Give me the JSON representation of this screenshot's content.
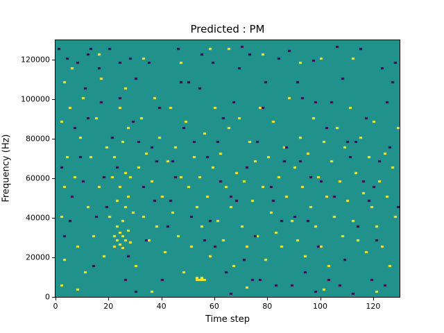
{
  "chart_data": {
    "type": "heatmap",
    "title": "Predicted : PM",
    "xlabel": "Time step",
    "ylabel": "Frequency (Hz)",
    "xlim": [
      0,
      130
    ],
    "ylim": [
      0,
      130000
    ],
    "x_ticks": [
      0,
      20,
      40,
      60,
      80,
      100,
      120
    ],
    "y_ticks": [
      0,
      20000,
      40000,
      60000,
      80000,
      100000,
      120000
    ],
    "grid": false,
    "legend": "none",
    "colormap": "viridis",
    "colors": {
      "background": "#21918c",
      "high": "#fde725",
      "low": "#440154",
      "frame": "#000000"
    },
    "grid_size": {
      "cols": 130,
      "rows": 130
    },
    "high_cells": [
      [
        2,
        5
      ],
      [
        3,
        18
      ],
      [
        2,
        40
      ],
      [
        3,
        55
      ],
      [
        4,
        70
      ],
      [
        2,
        88
      ],
      [
        5,
        95
      ],
      [
        3,
        108
      ],
      [
        6,
        115
      ],
      [
        8,
        25
      ],
      [
        7,
        60
      ],
      [
        9,
        80
      ],
      [
        10,
        100
      ],
      [
        12,
        45
      ],
      [
        11,
        12
      ],
      [
        13,
        70
      ],
      [
        14,
        30
      ],
      [
        15,
        90
      ],
      [
        16,
        55
      ],
      [
        17,
        110
      ],
      [
        18,
        20
      ],
      [
        19,
        75
      ],
      [
        20,
        40
      ],
      [
        21,
        60
      ],
      [
        22,
        25
      ],
      [
        22,
        30
      ],
      [
        23,
        28
      ],
      [
        23,
        35
      ],
      [
        24,
        26
      ],
      [
        24,
        32
      ],
      [
        25,
        24
      ],
      [
        25,
        30
      ],
      [
        25,
        38
      ],
      [
        26,
        28
      ],
      [
        26,
        45
      ],
      [
        27,
        50
      ],
      [
        27,
        33
      ],
      [
        28,
        60
      ],
      [
        28,
        27
      ],
      [
        29,
        42
      ],
      [
        23,
        48
      ],
      [
        24,
        55
      ],
      [
        26,
        62
      ],
      [
        22,
        70
      ],
      [
        25,
        78
      ],
      [
        27,
        85
      ],
      [
        24,
        95
      ],
      [
        26,
        105
      ],
      [
        30,
        15
      ],
      [
        31,
        65
      ],
      [
        32,
        90
      ],
      [
        33,
        40
      ],
      [
        34,
        72
      ],
      [
        35,
        28
      ],
      [
        36,
        58
      ],
      [
        37,
        100
      ],
      [
        38,
        35
      ],
      [
        39,
        80
      ],
      [
        40,
        50
      ],
      [
        41,
        22
      ],
      [
        42,
        68
      ],
      [
        43,
        95
      ],
      [
        44,
        42
      ],
      [
        45,
        75
      ],
      [
        46,
        30
      ],
      [
        47,
        60
      ],
      [
        48,
        12
      ],
      [
        49,
        88
      ],
      [
        50,
        55
      ],
      [
        51,
        25
      ],
      [
        52,
        70
      ],
      [
        53,
        45
      ],
      [
        53,
        8
      ],
      [
        54,
        8
      ],
      [
        55,
        8
      ],
      [
        55,
        9
      ],
      [
        56,
        8
      ],
      [
        53,
        9
      ],
      [
        54,
        60
      ],
      [
        55,
        35
      ],
      [
        56,
        82
      ],
      [
        57,
        50
      ],
      [
        58,
        20
      ],
      [
        59,
        65
      ],
      [
        60,
        95
      ],
      [
        61,
        38
      ],
      [
        62,
        72
      ],
      [
        63,
        28
      ],
      [
        64,
        55
      ],
      [
        65,
        85
      ],
      [
        66,
        45
      ],
      [
        67,
        15
      ],
      [
        68,
        62
      ],
      [
        69,
        90
      ],
      [
        70,
        35
      ],
      [
        71,
        58
      ],
      [
        72,
        25
      ],
      [
        73,
        78
      ],
      [
        74,
        48
      ],
      [
        75,
        68
      ],
      [
        76,
        30
      ],
      [
        77,
        95
      ],
      [
        78,
        55
      ],
      [
        79,
        18
      ],
      [
        80,
        70
      ],
      [
        81,
        42
      ],
      [
        82,
        88
      ],
      [
        83,
        32
      ],
      [
        84,
        60
      ],
      [
        85,
        25
      ],
      [
        86,
        75
      ],
      [
        87,
        50
      ],
      [
        88,
        100
      ],
      [
        89,
        38
      ],
      [
        90,
        65
      ],
      [
        91,
        28
      ],
      [
        92,
        80
      ],
      [
        93,
        55
      ],
      [
        94,
        20
      ],
      [
        95,
        72
      ],
      [
        96,
        45
      ],
      [
        97,
        90
      ],
      [
        98,
        35
      ],
      [
        99,
        60
      ],
      [
        100,
        25
      ],
      [
        101,
        78
      ],
      [
        102,
        50
      ],
      [
        103,
        15
      ],
      [
        104,
        68
      ],
      [
        105,
        40
      ],
      [
        106,
        85
      ],
      [
        107,
        58
      ],
      [
        108,
        30
      ],
      [
        109,
        75
      ],
      [
        110,
        48
      ],
      [
        111,
        95
      ],
      [
        112,
        38
      ],
      [
        113,
        62
      ],
      [
        114,
        28
      ],
      [
        115,
        80
      ],
      [
        116,
        52
      ],
      [
        117,
        22
      ],
      [
        118,
        70
      ],
      [
        119,
        45
      ],
      [
        120,
        88
      ],
      [
        121,
        35
      ],
      [
        122,
        58
      ],
      [
        123,
        25
      ],
      [
        124,
        72
      ],
      [
        125,
        50
      ],
      [
        126,
        15
      ],
      [
        127,
        65
      ],
      [
        128,
        40
      ],
      [
        129,
        85
      ],
      [
        100,
        120
      ],
      [
        92,
        118
      ],
      [
        58,
        125
      ],
      [
        33,
        120
      ],
      [
        47,
        118
      ],
      [
        78,
        122
      ],
      [
        112,
        120
      ],
      [
        16,
        122
      ],
      [
        65,
        125
      ],
      [
        8,
        3
      ],
      [
        36,
        2
      ],
      [
        72,
        4
      ],
      [
        101,
        3
      ],
      [
        121,
        2
      ]
    ],
    "low_cells": [
      [
        1,
        125
      ],
      [
        4,
        120
      ],
      [
        8,
        118
      ],
      [
        12,
        122
      ],
      [
        16,
        115
      ],
      [
        20,
        125
      ],
      [
        24,
        118
      ],
      [
        28,
        120
      ],
      [
        3,
        30
      ],
      [
        6,
        50
      ],
      [
        9,
        70
      ],
      [
        12,
        90
      ],
      [
        15,
        40
      ],
      [
        18,
        60
      ],
      [
        21,
        80
      ],
      [
        24,
        100
      ],
      [
        27,
        20
      ],
      [
        30,
        110
      ],
      [
        33,
        55
      ],
      [
        36,
        75
      ],
      [
        39,
        95
      ],
      [
        42,
        35
      ],
      [
        45,
        60
      ],
      [
        48,
        85
      ],
      [
        51,
        40
      ],
      [
        54,
        105
      ],
      [
        57,
        70
      ],
      [
        60,
        25
      ],
      [
        63,
        90
      ],
      [
        66,
        50
      ],
      [
        69,
        115
      ],
      [
        72,
        65
      ],
      [
        75,
        30
      ],
      [
        78,
        95
      ],
      [
        81,
        55
      ],
      [
        84,
        120
      ],
      [
        87,
        75
      ],
      [
        90,
        40
      ],
      [
        93,
        100
      ],
      [
        96,
        60
      ],
      [
        99,
        25
      ],
      [
        102,
        85
      ],
      [
        105,
        50
      ],
      [
        108,
        110
      ],
      [
        111,
        70
      ],
      [
        114,
        35
      ],
      [
        117,
        90
      ],
      [
        120,
        55
      ],
      [
        123,
        115
      ],
      [
        126,
        75
      ],
      [
        129,
        45
      ],
      [
        2,
        65
      ],
      [
        7,
        85
      ],
      [
        11,
        105
      ],
      [
        14,
        15
      ],
      [
        19,
        45
      ],
      [
        23,
        65
      ],
      [
        29,
        88
      ],
      [
        34,
        28
      ],
      [
        38,
        68
      ],
      [
        43,
        48
      ],
      [
        47,
        108
      ],
      [
        52,
        78
      ],
      [
        58,
        38
      ],
      [
        62,
        58
      ],
      [
        67,
        98
      ],
      [
        71,
        18
      ],
      [
        76,
        78
      ],
      [
        82,
        48
      ],
      [
        86,
        68
      ],
      [
        91,
        108
      ],
      [
        95,
        38
      ],
      [
        100,
        58
      ],
      [
        104,
        98
      ],
      [
        109,
        18
      ],
      [
        113,
        78
      ],
      [
        118,
        48
      ],
      [
        122,
        68
      ],
      [
        127,
        108
      ],
      [
        5,
        38
      ],
      [
        10,
        58
      ],
      [
        17,
        98
      ],
      [
        26,
        8
      ],
      [
        31,
        78
      ],
      [
        37,
        48
      ],
      [
        44,
        68
      ],
      [
        50,
        108
      ],
      [
        56,
        28
      ],
      [
        61,
        78
      ],
      [
        68,
        48
      ],
      [
        74,
        8
      ],
      [
        79,
        108
      ],
      [
        85,
        38
      ],
      [
        92,
        68
      ],
      [
        98,
        98
      ],
      [
        103,
        8
      ],
      [
        110,
        78
      ],
      [
        116,
        58
      ],
      [
        121,
        28
      ],
      [
        125,
        98
      ],
      [
        128,
        118
      ],
      [
        35,
        118
      ],
      [
        55,
        122
      ],
      [
        70,
        126
      ],
      [
        88,
        124
      ],
      [
        97,
        119
      ],
      [
        106,
        126
      ],
      [
        40,
        8
      ],
      [
        64,
        12
      ],
      [
        77,
        8
      ],
      [
        94,
        12
      ],
      [
        107,
        5
      ],
      [
        119,
        8
      ],
      [
        13,
        125
      ],
      [
        46,
        125
      ],
      [
        59,
        118
      ],
      [
        73,
        122
      ],
      [
        83,
        5
      ],
      [
        89,
        5
      ],
      [
        115,
        125
      ],
      [
        124,
        5
      ],
      [
        30,
        2
      ],
      [
        66,
        1
      ],
      [
        98,
        2
      ],
      [
        112,
        1
      ]
    ]
  }
}
